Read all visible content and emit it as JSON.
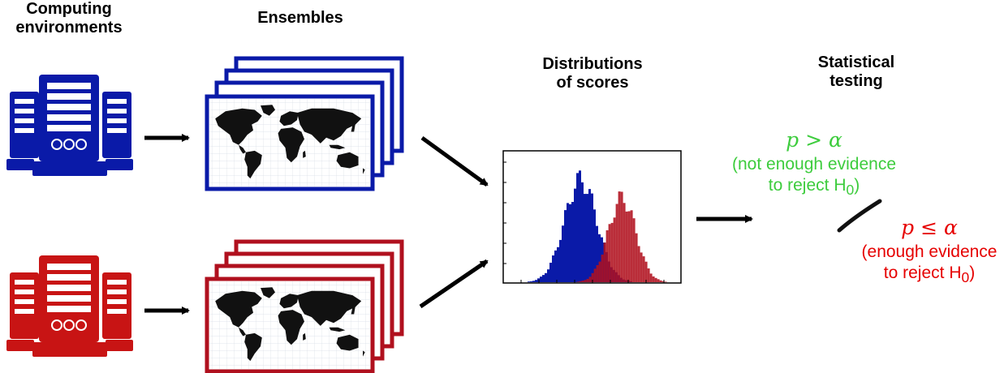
{
  "headings": {
    "computing": [
      "Computing",
      "environments"
    ],
    "ensembles": [
      "Ensembles"
    ],
    "distributions": [
      "Distributions",
      "of scores"
    ],
    "statistical": [
      "Statistical",
      "testing"
    ]
  },
  "results": {
    "not_rejected": {
      "expression": "p > α",
      "line1": "(not enough evidence",
      "line2": "to reject H",
      "subscript": "0",
      "close": ")"
    },
    "rejected": {
      "expression": "p ≤ α",
      "line1": "(enough evidence",
      "line2": "to reject H",
      "subscript": "0",
      "close": ")"
    }
  },
  "colors": {
    "blue": "#0a1aa8",
    "red": "#b0101e",
    "green_text": "#3dcc3d",
    "red_text": "#e60000"
  },
  "icons": [
    "server-rack-icon",
    "world-map-icon",
    "histogram-icon",
    "arrow-icon"
  ]
}
